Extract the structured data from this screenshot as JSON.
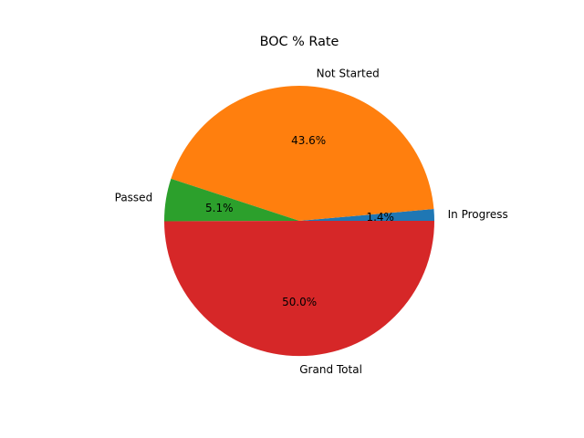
{
  "chart_data": {
    "type": "pie",
    "title": "BOC % Rate",
    "labels": [
      "In Progress",
      "Not Started",
      "Passed",
      "Grand Total"
    ],
    "values": [
      1.4,
      43.6,
      5.1,
      50.0
    ],
    "pct_labels": [
      "1.4%",
      "43.6%",
      "5.1%",
      "50.0%"
    ],
    "colors": [
      "#1f77b4",
      "#ff7f0e",
      "#2ca02c",
      "#d62728"
    ],
    "start_angle_deg": 0,
    "direction": "counterclockwise",
    "legend": "none"
  }
}
